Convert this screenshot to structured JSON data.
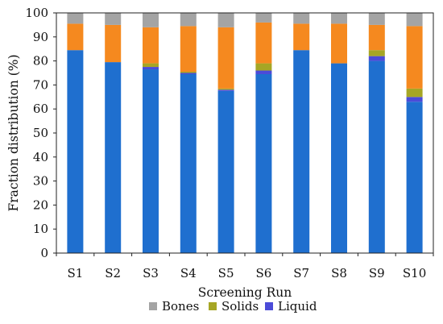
{
  "chart_data": {
    "type": "bar",
    "stacked": true,
    "xlabel": "Screening Run",
    "ylabel": "Fraction distribution (%)",
    "ylim": [
      0,
      100
    ],
    "yticks": [
      0,
      10,
      20,
      30,
      40,
      50,
      60,
      70,
      80,
      90,
      100
    ],
    "categories": [
      "S1",
      "S2",
      "S3",
      "S4",
      "S5",
      "S6",
      "S7",
      "S8",
      "S9",
      "S10"
    ],
    "grid": false,
    "legend_position": "bottom",
    "legend_entries": [
      "Bones",
      "Solids",
      "Liquid"
    ],
    "series": [
      {
        "key": "blue",
        "color": "#1f6fcf",
        "values": [
          84.5,
          79.5,
          76.5,
          74.5,
          67.5,
          74.5,
          84.5,
          79.0,
          80.0,
          63.0
        ]
      },
      {
        "key": "liquid",
        "name": "Liquid",
        "color": "#4b4bd8",
        "values": [
          0.0,
          0.0,
          1.0,
          0.5,
          0.5,
          1.5,
          0.0,
          0.0,
          2.0,
          2.0
        ]
      },
      {
        "key": "solids",
        "name": "Solids",
        "color": "#a6a625",
        "values": [
          0.0,
          0.0,
          1.5,
          0.5,
          0.5,
          3.0,
          0.0,
          0.0,
          2.5,
          3.5
        ]
      },
      {
        "key": "orange",
        "color": "#f5891f",
        "values": [
          11.0,
          15.5,
          15.0,
          19.0,
          25.5,
          17.0,
          11.0,
          16.5,
          10.5,
          26.0
        ]
      },
      {
        "key": "bones",
        "name": "Bones",
        "color": "#a4a4a4",
        "values": [
          4.5,
          5.0,
          6.0,
          5.5,
          6.0,
          4.0,
          4.5,
          4.5,
          5.0,
          5.5
        ]
      }
    ]
  }
}
